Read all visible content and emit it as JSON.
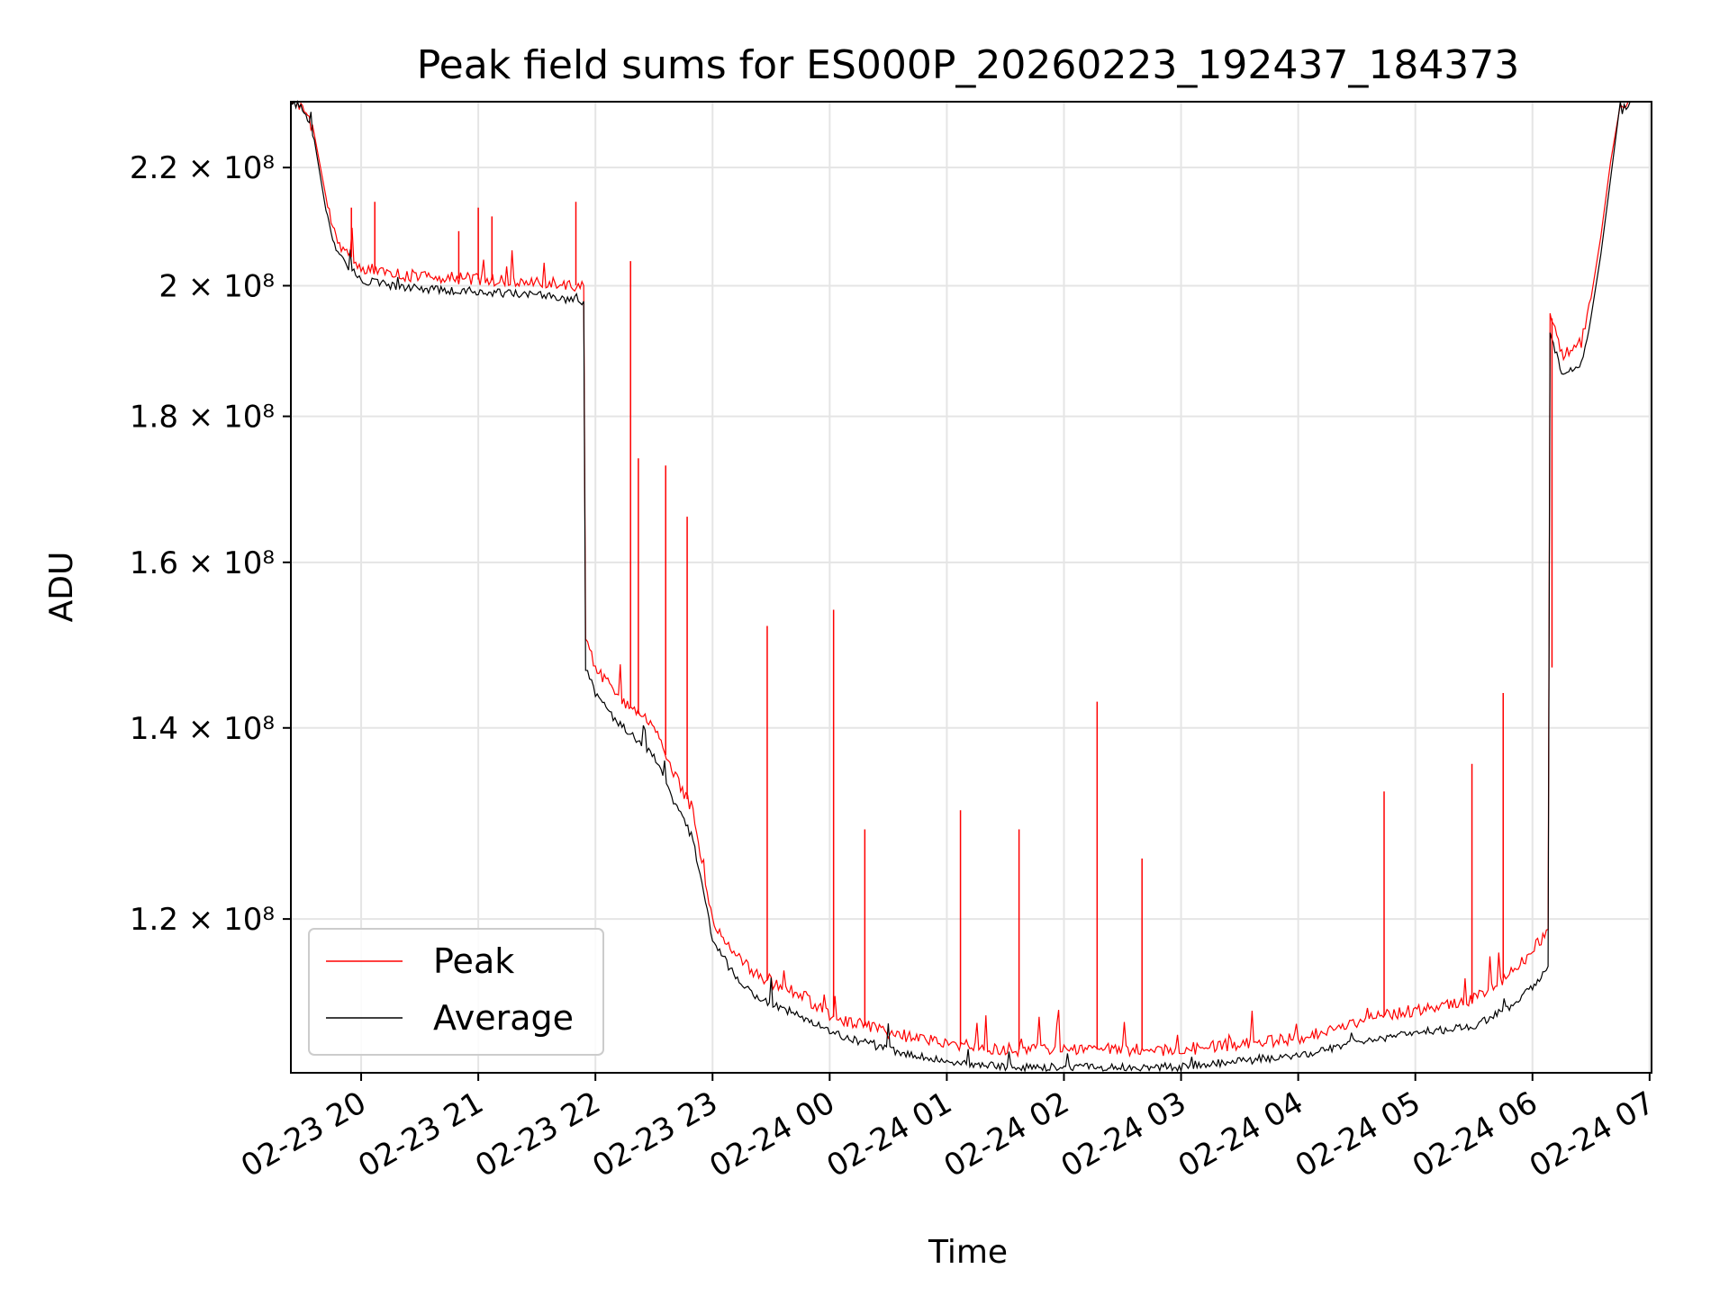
{
  "chart_data": {
    "type": "line",
    "title": "Peak field sums for ES000P_20260223_192437_184373",
    "xlabel": "Time",
    "ylabel": "ADU",
    "y_scale": "log",
    "ylim": [
      106000000,
      232000000
    ],
    "xlim": [
      "2026-02-23T19:24",
      "2026-02-24T07:01"
    ],
    "grid": true,
    "legend": {
      "position": "lower-left",
      "entries": [
        "Peak",
        "Average"
      ]
    },
    "y_ticks": [
      {
        "value": 120000000,
        "label": "1.2 × 10⁸"
      },
      {
        "value": 140000000,
        "label": "1.4 × 10⁸"
      },
      {
        "value": 160000000,
        "label": "1.6 × 10⁸"
      },
      {
        "value": 180000000,
        "label": "1.8 × 10⁸"
      },
      {
        "value": 200000000,
        "label": "2 × 10⁸"
      },
      {
        "value": 220000000,
        "label": "2.2 × 10⁸"
      }
    ],
    "x_ticks": [
      {
        "time": "2026-02-23T20:00",
        "label": "02-23 20"
      },
      {
        "time": "2026-02-23T21:00",
        "label": "02-23 21"
      },
      {
        "time": "2026-02-23T22:00",
        "label": "02-23 22"
      },
      {
        "time": "2026-02-23T23:00",
        "label": "02-23 23"
      },
      {
        "time": "2026-02-24T00:00",
        "label": "02-24 00"
      },
      {
        "time": "2026-02-24T01:00",
        "label": "02-24 01"
      },
      {
        "time": "2026-02-24T02:00",
        "label": "02-24 02"
      },
      {
        "time": "2026-02-24T03:00",
        "label": "02-24 03"
      },
      {
        "time": "2026-02-24T04:00",
        "label": "02-24 04"
      },
      {
        "time": "2026-02-24T05:00",
        "label": "02-24 05"
      },
      {
        "time": "2026-02-24T06:00",
        "label": "02-24 06"
      },
      {
        "time": "2026-02-24T07:00",
        "label": "02-24 07"
      }
    ],
    "series": [
      {
        "name": "Average",
        "color": "#000000",
        "x": [
          "2026-02-23T19:24",
          "2026-02-23T19:30",
          "2026-02-23T19:36",
          "2026-02-23T19:42",
          "2026-02-23T19:48",
          "2026-02-23T20:00",
          "2026-02-23T20:15",
          "2026-02-23T20:30",
          "2026-02-23T21:00",
          "2026-02-23T21:30",
          "2026-02-23T21:54",
          "2026-02-23T21:55",
          "2026-02-23T22:00",
          "2026-02-23T22:10",
          "2026-02-23T22:30",
          "2026-02-23T22:40",
          "2026-02-23T22:50",
          "2026-02-23T23:00",
          "2026-02-23T23:10",
          "2026-02-23T23:20",
          "2026-02-23T23:30",
          "2026-02-23T23:45",
          "2026-02-24T00:00",
          "2026-02-24T00:30",
          "2026-02-24T01:00",
          "2026-02-24T01:30",
          "2026-02-24T02:00",
          "2026-02-24T02:30",
          "2026-02-24T03:00",
          "2026-02-24T03:30",
          "2026-02-24T04:00",
          "2026-02-24T04:30",
          "2026-02-24T05:00",
          "2026-02-24T05:30",
          "2026-02-24T05:50",
          "2026-02-24T06:00",
          "2026-02-24T06:08",
          "2026-02-24T06:09",
          "2026-02-24T06:15",
          "2026-02-24T06:25",
          "2026-02-24T06:30",
          "2026-02-24T06:35",
          "2026-02-24T06:40",
          "2026-02-24T06:45",
          "2026-02-24T06:50"
        ],
        "values": [
          232000000,
          231000000,
          225000000,
          212000000,
          205000000,
          201000000,
          200000000,
          199500000,
          199000000,
          198500000,
          197500000,
          147000000,
          144000000,
          141000000,
          137000000,
          132000000,
          128000000,
          118000000,
          115000000,
          113000000,
          112000000,
          111000000,
          109500000,
          108000000,
          107000000,
          106500000,
          106500000,
          106500000,
          106500000,
          107000000,
          107500000,
          108500000,
          109500000,
          110000000,
          112000000,
          113500000,
          115500000,
          193000000,
          186000000,
          188000000,
          195000000,
          205000000,
          218000000,
          230000000,
          232000000
        ]
      },
      {
        "name": "Peak",
        "color": "#ff0000",
        "x": [
          "2026-02-23T19:24",
          "2026-02-23T19:30",
          "2026-02-23T19:36",
          "2026-02-23T19:42",
          "2026-02-23T19:48",
          "2026-02-23T20:00",
          "2026-02-23T20:15",
          "2026-02-23T20:30",
          "2026-02-23T21:00",
          "2026-02-23T21:30",
          "2026-02-23T21:54",
          "2026-02-23T21:55",
          "2026-02-23T22:00",
          "2026-02-23T22:10",
          "2026-02-23T22:30",
          "2026-02-23T22:40",
          "2026-02-23T22:50",
          "2026-02-23T23:00",
          "2026-02-23T23:10",
          "2026-02-23T23:20",
          "2026-02-23T23:30",
          "2026-02-23T23:45",
          "2026-02-24T00:00",
          "2026-02-24T00:30",
          "2026-02-24T01:00",
          "2026-02-24T01:30",
          "2026-02-24T02:00",
          "2026-02-24T02:30",
          "2026-02-24T03:00",
          "2026-02-24T03:30",
          "2026-02-24T04:00",
          "2026-02-24T04:30",
          "2026-02-24T05:00",
          "2026-02-24T05:30",
          "2026-02-24T05:50",
          "2026-02-24T06:00",
          "2026-02-24T06:08",
          "2026-02-24T06:09",
          "2026-02-24T06:15",
          "2026-02-24T06:25",
          "2026-02-24T06:30",
          "2026-02-24T06:35",
          "2026-02-24T06:40",
          "2026-02-24T06:45",
          "2026-02-24T06:50"
        ],
        "values": [
          232000000,
          231500000,
          226000000,
          214000000,
          207000000,
          203000000,
          202000000,
          201500000,
          201000000,
          200500000,
          200000000,
          150000000,
          147000000,
          144000000,
          140000000,
          135000000,
          131000000,
          120000000,
          117000000,
          115000000,
          114000000,
          113000000,
          111000000,
          109500000,
          108500000,
          108000000,
          108000000,
          108000000,
          108000000,
          108500000,
          109000000,
          110500000,
          111500000,
          112500000,
          115000000,
          117000000,
          119000000,
          196000000,
          189000000,
          191000000,
          198000000,
          208000000,
          221000000,
          231000000,
          232000000
        ],
        "spikes": [
          {
            "x": "2026-02-23T19:55",
            "y": 213000000
          },
          {
            "x": "2026-02-23T20:07",
            "y": 214000000
          },
          {
            "x": "2026-02-23T20:50",
            "y": 209000000
          },
          {
            "x": "2026-02-23T21:00",
            "y": 213000000
          },
          {
            "x": "2026-02-23T21:07",
            "y": 211500000
          },
          {
            "x": "2026-02-23T21:50",
            "y": 214000000
          },
          {
            "x": "2026-02-23T22:18",
            "y": 204000000
          },
          {
            "x": "2026-02-23T22:22",
            "y": 174000000
          },
          {
            "x": "2026-02-23T22:36",
            "y": 173000000
          },
          {
            "x": "2026-02-23T22:47",
            "y": 166000000
          },
          {
            "x": "2026-02-23T23:28",
            "y": 152000000
          },
          {
            "x": "2026-02-24T00:02",
            "y": 154000000
          },
          {
            "x": "2026-02-24T00:18",
            "y": 129000000
          },
          {
            "x": "2026-02-24T01:07",
            "y": 131000000
          },
          {
            "x": "2026-02-24T01:37",
            "y": 129000000
          },
          {
            "x": "2026-02-24T02:17",
            "y": 143000000
          },
          {
            "x": "2026-02-24T02:40",
            "y": 126000000
          },
          {
            "x": "2026-02-24T04:44",
            "y": 133000000
          },
          {
            "x": "2026-02-24T05:29",
            "y": 136000000
          },
          {
            "x": "2026-02-24T05:45",
            "y": 144000000
          },
          {
            "x": "2026-02-24T06:10",
            "y": 147000000
          }
        ]
      }
    ]
  }
}
